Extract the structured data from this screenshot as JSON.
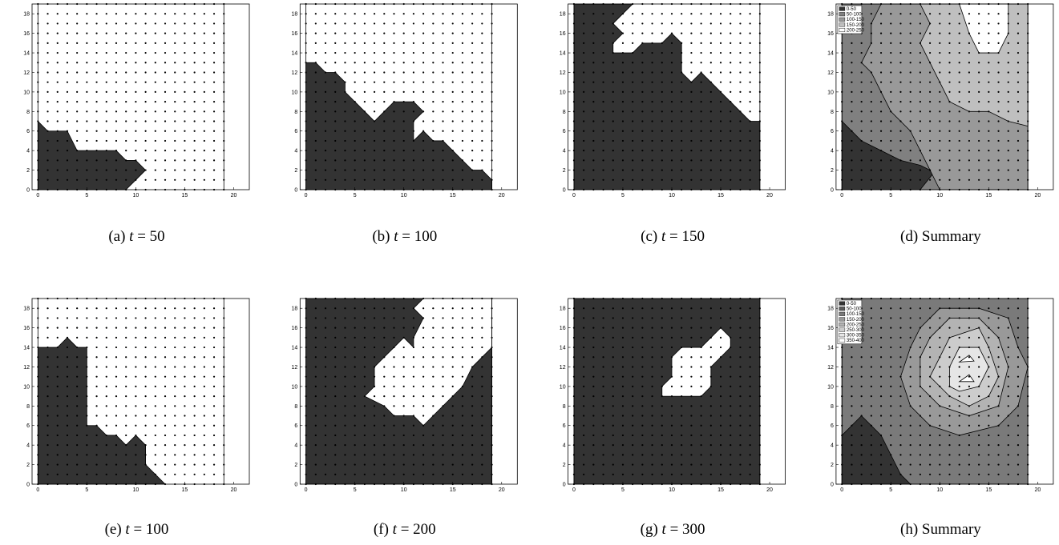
{
  "axes": {
    "xlim": [
      -0.6,
      21.6
    ],
    "ylim": [
      0,
      19
    ],
    "xticks": [
      0,
      5,
      10,
      15,
      20
    ],
    "yticks": [
      0,
      2,
      4,
      6,
      8,
      10,
      12,
      14,
      16,
      18
    ]
  },
  "lattice": {
    "min": 0,
    "max": 19,
    "step": 1
  },
  "panels": [
    {
      "tag": "(a)",
      "var": "t",
      "rest": "= 50",
      "layers": [
        {
          "color": "#333333",
          "points": [
            [
              0,
              0
            ],
            [
              0,
              7
            ],
            [
              1,
              6
            ],
            [
              3,
              6
            ],
            [
              4,
              4
            ],
            [
              8,
              4
            ],
            [
              9,
              3
            ],
            [
              10,
              3
            ],
            [
              11,
              2
            ],
            [
              10,
              1
            ],
            [
              9,
              0
            ]
          ]
        }
      ]
    },
    {
      "tag": "(b)",
      "var": "t",
      "rest": "= 100",
      "layers": [
        {
          "color": "#333333",
          "points": [
            [
              0,
              0
            ],
            [
              0,
              13
            ],
            [
              1,
              13
            ],
            [
              2,
              12
            ],
            [
              3,
              12
            ],
            [
              4,
              11
            ],
            [
              4,
              10
            ],
            [
              5,
              9
            ],
            [
              6,
              8
            ],
            [
              7,
              7
            ],
            [
              8,
              8
            ],
            [
              9,
              9
            ],
            [
              11,
              9
            ],
            [
              12,
              8
            ],
            [
              11,
              7
            ],
            [
              11,
              5
            ],
            [
              12,
              6
            ],
            [
              13,
              5
            ],
            [
              14,
              5
            ],
            [
              15,
              4
            ],
            [
              16,
              3
            ],
            [
              17,
              2
            ],
            [
              18,
              2
            ],
            [
              19,
              1
            ],
            [
              19,
              0
            ]
          ]
        }
      ]
    },
    {
      "tag": "(c)",
      "var": "t",
      "rest": "= 150",
      "layers": [
        {
          "color": "#333333",
          "points": [
            [
              0,
              0
            ],
            [
              0,
              19
            ],
            [
              6,
              19
            ],
            [
              5,
              18
            ],
            [
              4,
              17
            ],
            [
              5,
              16
            ],
            [
              4,
              15
            ],
            [
              4,
              14
            ],
            [
              6,
              14
            ],
            [
              7,
              15
            ],
            [
              9,
              15
            ],
            [
              10,
              16
            ],
            [
              11,
              15
            ],
            [
              11,
              12
            ],
            [
              12,
              11
            ],
            [
              13,
              12
            ],
            [
              14,
              11
            ],
            [
              15,
              10
            ],
            [
              16,
              9
            ],
            [
              17,
              8
            ],
            [
              18,
              7
            ],
            [
              19,
              7
            ],
            [
              19,
              0
            ]
          ]
        }
      ]
    },
    {
      "tag": "(d)",
      "text": "Summary",
      "legend": [
        {
          "label": "0-50",
          "color": "#333333"
        },
        {
          "label": "50-100",
          "color": "#808080"
        },
        {
          "label": "100-150",
          "color": "#999999"
        },
        {
          "label": "150-200",
          "color": "#bfbfbf"
        },
        {
          "label": "200-250",
          "color": "#ffffff"
        }
      ],
      "layers": [
        {
          "color": "#808080",
          "points": [
            [
              0,
              0
            ],
            [
              0,
              19
            ],
            [
              19,
              19
            ],
            [
              19,
              0
            ]
          ]
        },
        {
          "color": "#333333",
          "points": [
            [
              0,
              0
            ],
            [
              0,
              7
            ],
            [
              2,
              5
            ],
            [
              4,
              4
            ],
            [
              6,
              3
            ],
            [
              8,
              2.5
            ],
            [
              9,
              2
            ],
            [
              10,
              2.5
            ],
            [
              8,
              0
            ]
          ]
        },
        {
          "color": "#999999",
          "points": [
            [
              5,
              19
            ],
            [
              19,
              19
            ],
            [
              19,
              0
            ],
            [
              10,
              0
            ],
            [
              9,
              2
            ],
            [
              8,
              4
            ],
            [
              7,
              6
            ],
            [
              5,
              8
            ],
            [
              4,
              10
            ],
            [
              3,
              12
            ],
            [
              2,
              13
            ],
            [
              3,
              15
            ],
            [
              3,
              17
            ],
            [
              4,
              19
            ]
          ]
        },
        {
          "color": "#bfbfbf",
          "points": [
            [
              8,
              19
            ],
            [
              19,
              19
            ],
            [
              19,
              6.5
            ],
            [
              17,
              7
            ],
            [
              15,
              8
            ],
            [
              13,
              8
            ],
            [
              11,
              9
            ],
            [
              10,
              11
            ],
            [
              9,
              13
            ],
            [
              8,
              15
            ],
            [
              9,
              17
            ]
          ]
        },
        {
          "color": "#ffffff",
          "points": [
            [
              12,
              19
            ],
            [
              17,
              19
            ],
            [
              17,
              16
            ],
            [
              16,
              14
            ],
            [
              14,
              14
            ],
            [
              13,
              16
            ]
          ]
        }
      ]
    },
    {
      "tag": "(e)",
      "var": "t",
      "rest": "= 100",
      "layers": [
        {
          "color": "#333333",
          "points": [
            [
              0,
              0
            ],
            [
              0,
              14
            ],
            [
              2,
              14
            ],
            [
              3,
              15
            ],
            [
              4,
              14
            ],
            [
              5,
              14
            ],
            [
              5,
              6
            ],
            [
              6,
              6
            ],
            [
              7,
              5
            ],
            [
              8,
              5
            ],
            [
              9,
              4
            ],
            [
              10,
              5
            ],
            [
              11,
              4
            ],
            [
              11,
              2
            ],
            [
              12,
              1
            ],
            [
              13,
              0
            ]
          ]
        }
      ]
    },
    {
      "tag": "(f)",
      "var": "t",
      "rest": "= 200",
      "layers": [
        {
          "color": "#333333",
          "points": [
            [
              0,
              0
            ],
            [
              0,
              19
            ],
            [
              19,
              19
            ],
            [
              19,
              0
            ]
          ]
        },
        {
          "color": "#ffffff",
          "points": [
            [
              12,
              19
            ],
            [
              19,
              19
            ],
            [
              19,
              14
            ],
            [
              17,
              12
            ],
            [
              16,
              10
            ],
            [
              15,
              9
            ],
            [
              13,
              7
            ],
            [
              12,
              6
            ],
            [
              11,
              7
            ],
            [
              9,
              7
            ],
            [
              8,
              8
            ],
            [
              6,
              9
            ],
            [
              7,
              10
            ],
            [
              7,
              12
            ],
            [
              8,
              13
            ],
            [
              9,
              14
            ],
            [
              10,
              15
            ],
            [
              11,
              14
            ],
            [
              11,
              15
            ],
            [
              12,
              17
            ],
            [
              11,
              18
            ]
          ]
        }
      ]
    },
    {
      "tag": "(g)",
      "var": "t",
      "rest": "= 300",
      "layers": [
        {
          "color": "#333333",
          "points": [
            [
              0,
              0
            ],
            [
              0,
              19
            ],
            [
              19,
              19
            ],
            [
              19,
              0
            ]
          ]
        },
        {
          "color": "#ffffff",
          "points": [
            [
              9,
              9
            ],
            [
              9,
              10
            ],
            [
              10,
              11
            ],
            [
              10,
              13
            ],
            [
              11,
              14
            ],
            [
              13,
              14
            ],
            [
              14,
              15
            ],
            [
              15,
              16
            ],
            [
              16,
              15
            ],
            [
              16,
              14
            ],
            [
              15,
              13
            ],
            [
              14,
              12
            ],
            [
              14,
              10
            ],
            [
              13,
              9
            ]
          ]
        }
      ]
    },
    {
      "tag": "(h)",
      "text": "Summary",
      "legend": [
        {
          "label": "0-50",
          "color": "#333333"
        },
        {
          "label": "50-100",
          "color": "#5a5a5a"
        },
        {
          "label": "100-150",
          "color": "#7a7a7a"
        },
        {
          "label": "150-200",
          "color": "#999999"
        },
        {
          "label": "200-250",
          "color": "#b3b3b3"
        },
        {
          "label": "250-300",
          "color": "#cccccc"
        },
        {
          "label": "300-350",
          "color": "#e6e6e6"
        },
        {
          "label": "350-400",
          "color": "#ffffff"
        }
      ],
      "layers": [
        {
          "color": "#7a7a7a",
          "points": [
            [
              0,
              0
            ],
            [
              0,
              19
            ],
            [
              19,
              19
            ],
            [
              19,
              0
            ]
          ]
        },
        {
          "color": "#333333",
          "points": [
            [
              0,
              0
            ],
            [
              0,
              5
            ],
            [
              1,
              6
            ],
            [
              2,
              7
            ],
            [
              3,
              6
            ],
            [
              4,
              5
            ],
            [
              5,
              3
            ],
            [
              6,
              1
            ],
            [
              7,
              0
            ]
          ]
        },
        {
          "color": "#999999",
          "points": [
            [
              8,
              16
            ],
            [
              10,
              18
            ],
            [
              14,
              18
            ],
            [
              17,
              17
            ],
            [
              18,
              14
            ],
            [
              19,
              12
            ],
            [
              18,
              8
            ],
            [
              16,
              6
            ],
            [
              12,
              5
            ],
            [
              9,
              6
            ],
            [
              7,
              8
            ],
            [
              6,
              11
            ],
            [
              7,
              14
            ]
          ]
        },
        {
          "color": "#b3b3b3",
          "points": [
            [
              9,
              15
            ],
            [
              11,
              17
            ],
            [
              14,
              17
            ],
            [
              16,
              15
            ],
            [
              17,
              12
            ],
            [
              16,
              8
            ],
            [
              13,
              7
            ],
            [
              10,
              8
            ],
            [
              8,
              10
            ],
            [
              8,
              13
            ]
          ]
        },
        {
          "color": "#cccccc",
          "points": [
            [
              10,
              13
            ],
            [
              11,
              15
            ],
            [
              14,
              16
            ],
            [
              15,
              14
            ],
            [
              16,
              11
            ],
            [
              15,
              9
            ],
            [
              13,
              8
            ],
            [
              11,
              9
            ],
            [
              9,
              11
            ]
          ]
        },
        {
          "color": "#e6e6e6",
          "points": [
            [
              11,
              12
            ],
            [
              12,
              14
            ],
            [
              14,
              14
            ],
            [
              15,
              12
            ],
            [
              14,
              10
            ],
            [
              12,
              9.5
            ],
            [
              11,
              10
            ]
          ]
        },
        {
          "color": "#ffffff",
          "points": [
            [
              12,
              12.5
            ],
            [
              13,
              13.2
            ],
            [
              13.5,
              12.6
            ]
          ]
        },
        {
          "color": "#ffffff",
          "points": [
            [
              12,
              10.5
            ],
            [
              13,
              11.2
            ],
            [
              13.5,
              10.5
            ]
          ]
        }
      ]
    }
  ]
}
